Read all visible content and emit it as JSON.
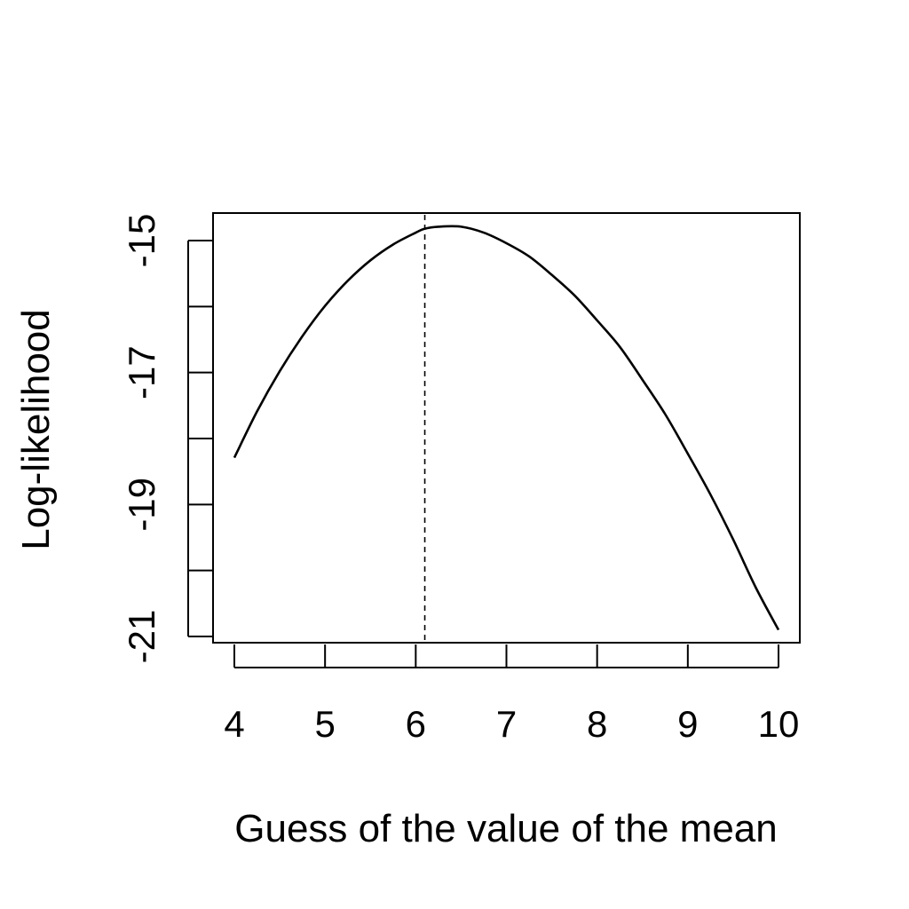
{
  "chart_data": {
    "type": "line",
    "title": "",
    "xlabel": "Guess of the value of the mean",
    "ylabel": "Log-likelihood",
    "xlim": [
      4,
      10
    ],
    "ylim": [
      -21,
      -15
    ],
    "x_ticks": [
      4,
      5,
      6,
      7,
      8,
      9,
      10
    ],
    "x_tick_labels": [
      "4",
      "5",
      "6",
      "7",
      "8",
      "9",
      "10"
    ],
    "y_ticks": [
      -21,
      -20,
      -19,
      -18,
      -17,
      -16,
      -15
    ],
    "y_tick_labels": [
      "-21",
      "",
      "-19",
      "",
      "-17",
      "",
      "-15"
    ],
    "grid": false,
    "legend": "none",
    "series": [
      {
        "x": [
          4.0,
          4.25,
          4.5,
          4.75,
          5.0,
          5.25,
          5.5,
          5.75,
          6.0,
          6.1,
          6.25,
          6.5,
          6.75,
          7.0,
          7.25,
          7.5,
          7.75,
          8.0,
          8.25,
          8.5,
          8.75,
          9.0,
          9.25,
          9.5,
          9.75,
          10.0
        ],
        "y": [
          -18.29,
          -17.59,
          -16.98,
          -16.45,
          -15.99,
          -15.61,
          -15.3,
          -15.06,
          -14.88,
          -14.82,
          -14.79,
          -14.79,
          -14.88,
          -15.04,
          -15.24,
          -15.52,
          -15.83,
          -16.21,
          -16.61,
          -17.11,
          -17.63,
          -18.23,
          -18.85,
          -19.53,
          -20.26,
          -20.9
        ]
      }
    ],
    "reference_line": {
      "orientation": "vertical",
      "x": 6.1,
      "style": "dashed"
    },
    "colors": {
      "line": "#000000",
      "axis": "#000000",
      "background": "#ffffff"
    }
  }
}
